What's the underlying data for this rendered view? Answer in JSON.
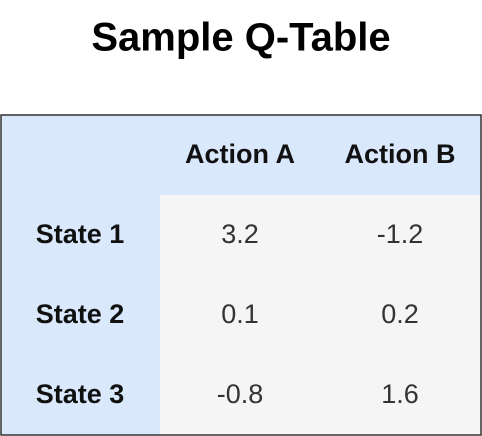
{
  "title": "Sample Q-Table",
  "table": {
    "columns": [
      "Action A",
      "Action B"
    ],
    "rows": [
      {
        "state": "State 1",
        "values": [
          3.2,
          -1.2
        ]
      },
      {
        "state": "State 2",
        "values": [
          0.1,
          0.2
        ]
      },
      {
        "state": "State 3",
        "values": [
          -0.8,
          1.6
        ]
      }
    ]
  }
}
